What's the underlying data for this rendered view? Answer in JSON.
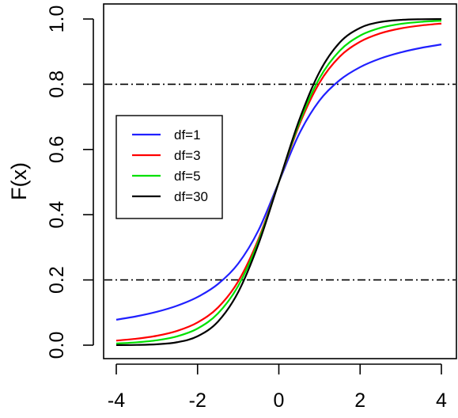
{
  "chart_data": {
    "type": "line",
    "title": "",
    "xlabel": "",
    "ylabel": "F(x)",
    "xlim": [
      -4,
      4
    ],
    "ylim": [
      0,
      1
    ],
    "x_ticks": [
      -4,
      -2,
      0,
      2,
      4
    ],
    "x_tick_labels": [
      "-4",
      "-2",
      "0",
      "2",
      "4"
    ],
    "y_ticks": [
      0.0,
      0.2,
      0.4,
      0.6,
      0.8,
      1.0
    ],
    "y_tick_labels": [
      "0.0",
      "0.2",
      "0.4",
      "0.6",
      "0.8",
      "1.0"
    ],
    "grid": false,
    "legend": {
      "position": "left-middle",
      "boxed": true
    },
    "reference_lines": [
      {
        "axis": "y",
        "value": 0.2,
        "style": "dash-dot",
        "color": "#000000"
      },
      {
        "axis": "y",
        "value": 0.8,
        "style": "dash-dot",
        "color": "#000000"
      }
    ],
    "x": [
      -4,
      -3.5,
      -3,
      -2.5,
      -2,
      -1.5,
      -1,
      -0.5,
      0,
      0.5,
      1,
      1.5,
      2,
      2.5,
      3,
      3.5,
      4
    ],
    "series": [
      {
        "name": "df=1",
        "color": "#2020ff",
        "values": [
          0.078,
          0.0886,
          0.1024,
          0.1211,
          0.1476,
          0.1872,
          0.25,
          0.3524,
          0.5,
          0.6476,
          0.75,
          0.8128,
          0.8524,
          0.8789,
          0.8976,
          0.9114,
          0.922
        ]
      },
      {
        "name": "df=3",
        "color": "#ff0000",
        "values": [
          0.014,
          0.0198,
          0.0288,
          0.0439,
          0.0697,
          0.1152,
          0.1955,
          0.3257,
          0.5,
          0.6743,
          0.8045,
          0.8848,
          0.9303,
          0.9561,
          0.9712,
          0.9802,
          0.986
        ]
      },
      {
        "name": "df=5",
        "color": "#00e000",
        "values": [
          0.0052,
          0.0087,
          0.015,
          0.0272,
          0.051,
          0.097,
          0.1816,
          0.3191,
          0.5,
          0.6809,
          0.8184,
          0.903,
          0.949,
          0.9728,
          0.985,
          0.9913,
          0.9948
        ]
      },
      {
        "name": "df=30",
        "color": "#000000",
        "values": [
          0.0002,
          0.0007,
          0.0027,
          0.0091,
          0.0273,
          0.072,
          0.1627,
          0.3104,
          0.5,
          0.6896,
          0.8373,
          0.928,
          0.9727,
          0.9909,
          0.9973,
          0.9993,
          0.9998
        ]
      }
    ]
  }
}
